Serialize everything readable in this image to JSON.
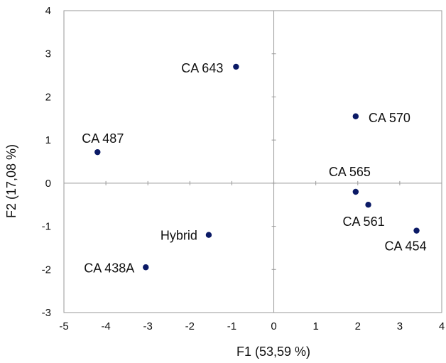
{
  "chart_data": {
    "type": "scatter",
    "xlabel": "F1 (53,59 %)",
    "ylabel": "F2 (17,08 %)",
    "xlim": [
      -5,
      4
    ],
    "ylim": [
      -3,
      4
    ],
    "x_ticks": [
      -5,
      -4,
      -3,
      -2,
      -1,
      0,
      1,
      2,
      3,
      4
    ],
    "y_ticks": [
      -3,
      -2,
      -1,
      0,
      1,
      2,
      3,
      4
    ],
    "grid": false,
    "zero_lines": true,
    "marker_color": "#0b1a66",
    "axis_color": "#999999",
    "points": [
      {
        "label": "CA 643",
        "x": -0.9,
        "y": 2.7
      },
      {
        "label": "CA 570",
        "x": 1.95,
        "y": 1.55
      },
      {
        "label": "CA 487",
        "x": -4.2,
        "y": 0.72
      },
      {
        "label": "CA 565",
        "x": 1.95,
        "y": -0.2
      },
      {
        "label": "CA 561",
        "x": 2.25,
        "y": -0.5
      },
      {
        "label": "CA 454",
        "x": 3.4,
        "y": -1.1
      },
      {
        "label": "Hybrid",
        "x": -1.55,
        "y": -1.2
      },
      {
        "label": "CA 438A",
        "x": -3.05,
        "y": -1.95
      }
    ]
  }
}
